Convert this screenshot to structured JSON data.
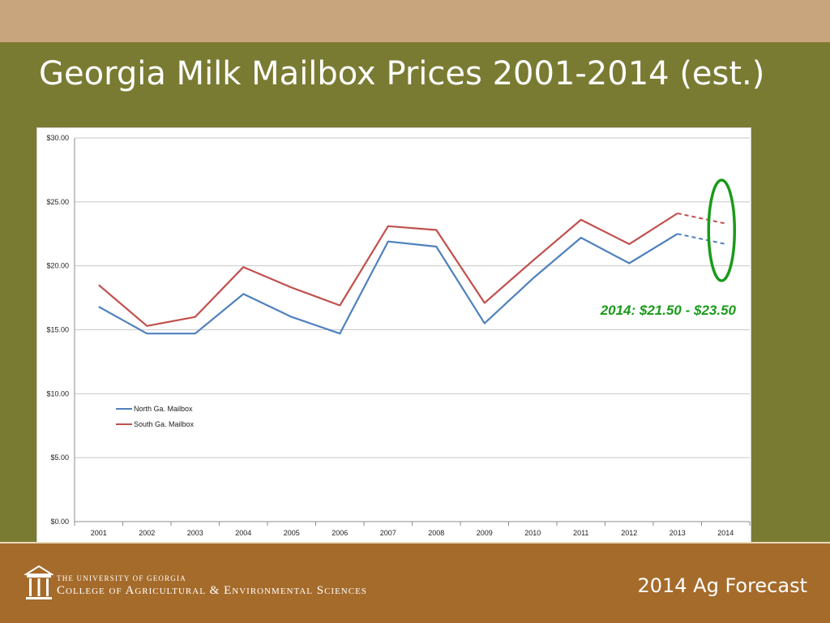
{
  "slide": {
    "title": "Georgia Milk Mailbox Prices 2001-2014 (est.)"
  },
  "footer": {
    "university_line1": "THE UNIVERSITY OF GEORGIA",
    "university_line2": "College of Agricultural & Environmental Sciences",
    "forecast_label": "2014 Ag Forecast",
    "logo_icon": "arch-icon"
  },
  "colors": {
    "background": "#7a7b32",
    "top_band": "#c8a57d",
    "footer": "#a56b2b",
    "north_series": "#4f81bd",
    "south_series": "#c0504d",
    "annotation": "#1a9a1a"
  },
  "chart_data": {
    "type": "line",
    "title": "",
    "xlabel": "",
    "ylabel": "",
    "categories": [
      "2001",
      "2002",
      "2003",
      "2004",
      "2005",
      "2006",
      "2007",
      "2008",
      "2009",
      "2010",
      "2011",
      "2012",
      "2013",
      "2014"
    ],
    "y_ticks": [
      "$0.00",
      "$5.00",
      "$10.00",
      "$15.00",
      "$20.00",
      "$25.00",
      "$30.00"
    ],
    "ylim": [
      0,
      30
    ],
    "grid": true,
    "legend_position": "left",
    "estimated_from": "2013",
    "series": [
      {
        "name": "North Ga. Mailbox",
        "color": "#4f81bd",
        "values": [
          16.8,
          14.7,
          14.7,
          17.8,
          16.0,
          14.7,
          21.9,
          21.5,
          15.5,
          19.0,
          22.2,
          20.2,
          22.5,
          21.7
        ]
      },
      {
        "name": "South Ga. Mailbox",
        "color": "#c0504d",
        "values": [
          18.5,
          15.3,
          16.0,
          19.9,
          18.3,
          16.9,
          23.1,
          22.8,
          17.1,
          20.4,
          23.6,
          21.7,
          24.1,
          23.3
        ]
      }
    ],
    "annotation": "2014: $21.50 - $23.50"
  }
}
